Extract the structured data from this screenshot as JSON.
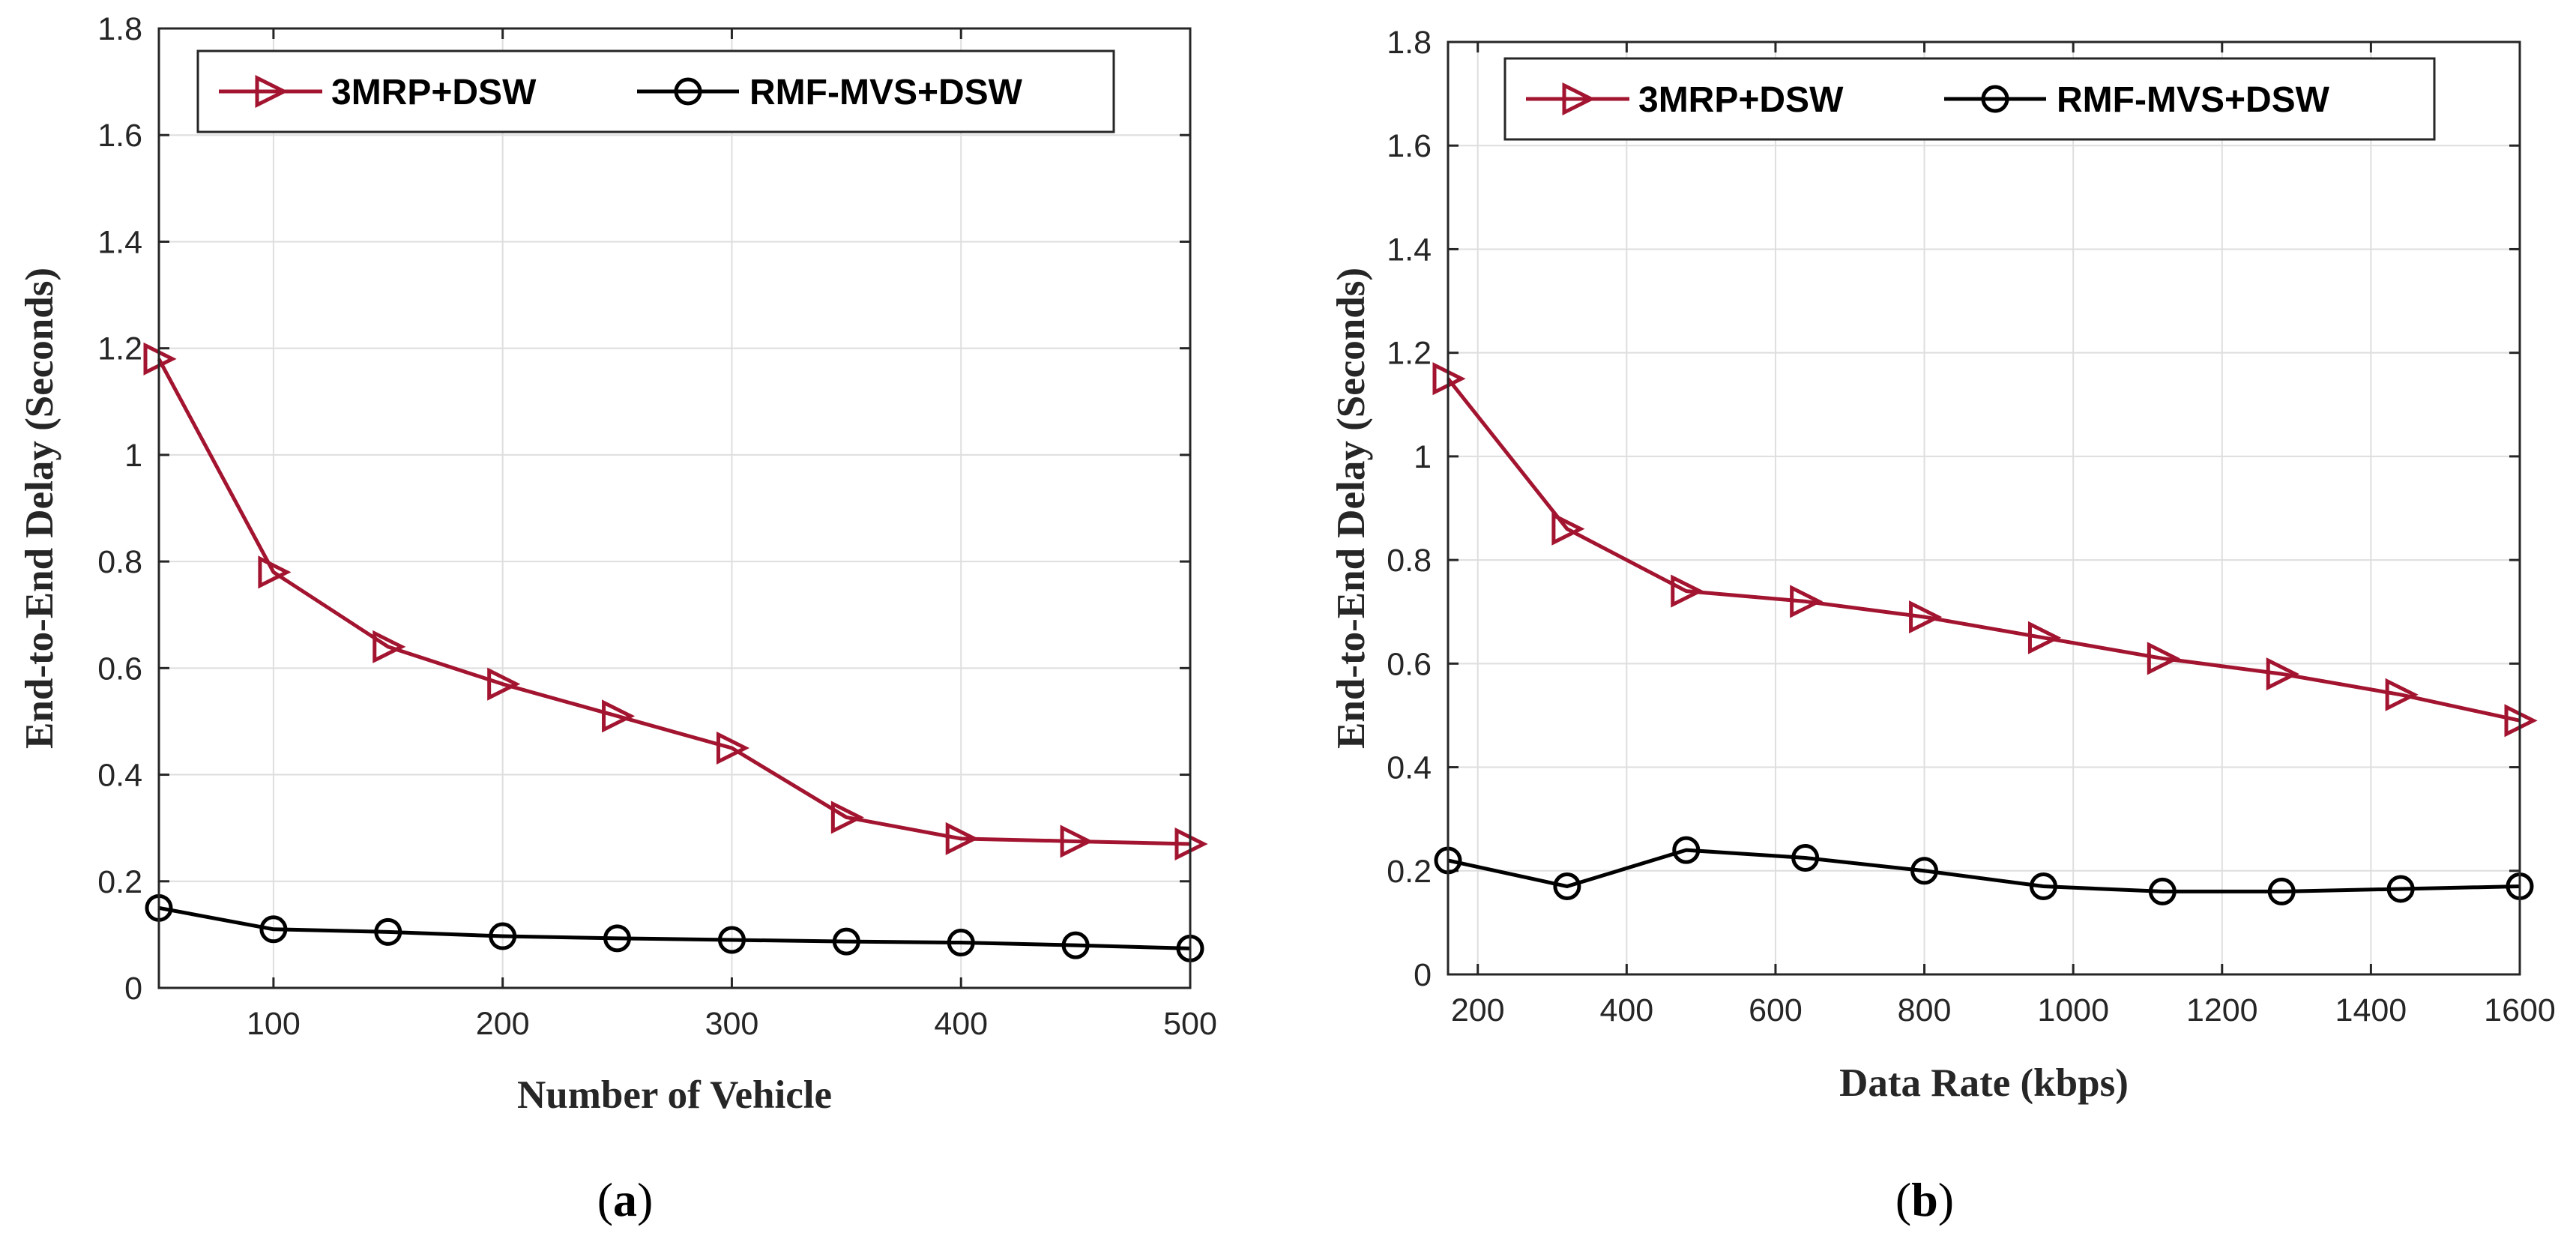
{
  "colors": {
    "series_3mrp": "#A2142F",
    "series_rmf": "#000000",
    "grid": "#dedede",
    "axis": "#262626"
  },
  "chart_data": [
    {
      "id": "a",
      "type": "line",
      "caption_letter": "a",
      "caption_open": "(",
      "caption_close": ")",
      "xlabel": "Number of Vehicle",
      "ylabel": "End-to-End Delay (Seconds)",
      "xlim": [
        50,
        500
      ],
      "ylim": [
        0,
        1.8
      ],
      "grid": true,
      "legend_placement": "top",
      "x_ticks": [
        100,
        200,
        300,
        400,
        500
      ],
      "y_ticks": [
        0,
        0.2,
        0.4,
        0.6,
        0.8,
        1,
        1.2,
        1.4,
        1.6,
        1.8
      ],
      "x_tick_labels": [
        "100",
        "200",
        "300",
        "400",
        "500"
      ],
      "y_tick_labels": [
        "0",
        "0.2",
        "0.4",
        "0.6",
        "0.8",
        "1",
        "1.2",
        "1.4",
        "1.6",
        "1.8"
      ],
      "x": [
        50,
        100,
        150,
        200,
        250,
        300,
        350,
        400,
        450,
        500
      ],
      "series": [
        {
          "name": "3MRP+DSW",
          "marker": "triangle-right",
          "color": "#A2142F",
          "values": [
            1.18,
            0.78,
            0.64,
            0.57,
            0.51,
            0.45,
            0.32,
            0.28,
            0.275,
            0.27
          ]
        },
        {
          "name": "RMF-MVS+DSW",
          "marker": "circle",
          "color": "#000000",
          "values": [
            0.15,
            0.11,
            0.105,
            0.097,
            0.093,
            0.09,
            0.087,
            0.085,
            0.08,
            0.074
          ]
        }
      ]
    },
    {
      "id": "b",
      "type": "line",
      "caption_letter": "b",
      "caption_open": "(",
      "caption_close": ")",
      "xlabel": "Data Rate (kbps)",
      "ylabel": "End-to-End Delay (Seconds)",
      "xlim": [
        160,
        1600
      ],
      "ylim": [
        0,
        1.8
      ],
      "grid": true,
      "legend_placement": "top",
      "x_ticks": [
        200,
        400,
        600,
        800,
        1000,
        1200,
        1400,
        1600
      ],
      "y_ticks": [
        0,
        0.2,
        0.4,
        0.6,
        0.8,
        1,
        1.2,
        1.4,
        1.6,
        1.8
      ],
      "x_tick_labels": [
        "200",
        "400",
        "600",
        "800",
        "1000",
        "1200",
        "1400",
        "1600"
      ],
      "y_tick_labels": [
        "0",
        "0.2",
        "0.4",
        "0.6",
        "0.8",
        "1",
        "1.2",
        "1.4",
        "1.6",
        "1.8"
      ],
      "x": [
        160,
        320,
        480,
        640,
        800,
        960,
        1120,
        1280,
        1440,
        1600
      ],
      "series": [
        {
          "name": "3MRP+DSW",
          "marker": "triangle-right",
          "color": "#A2142F",
          "values": [
            1.15,
            0.86,
            0.74,
            0.72,
            0.69,
            0.65,
            0.61,
            0.58,
            0.54,
            0.49
          ]
        },
        {
          "name": "RMF-MVS+DSW",
          "marker": "circle",
          "color": "#000000",
          "values": [
            0.22,
            0.17,
            0.24,
            0.225,
            0.2,
            0.17,
            0.16,
            0.16,
            0.165,
            0.17
          ]
        }
      ]
    }
  ]
}
